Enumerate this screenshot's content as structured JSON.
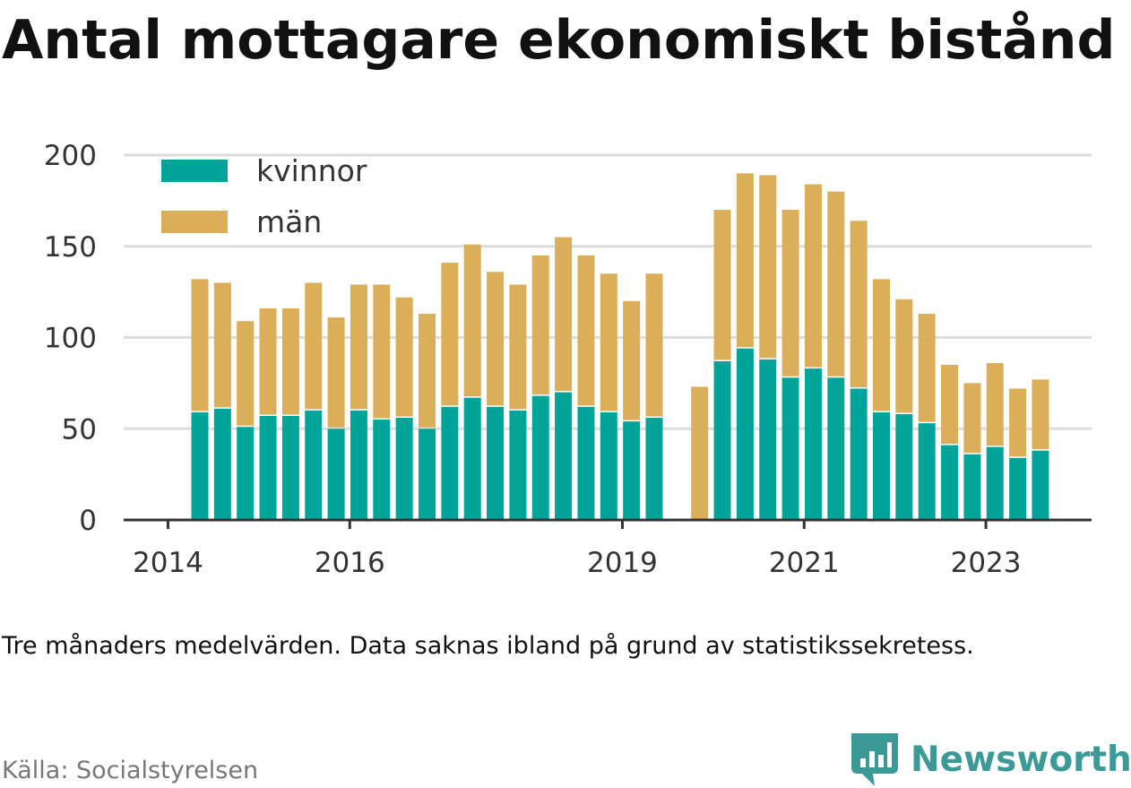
{
  "title": "Antal mottagare ekonomiskt bistånd",
  "note": "Tre månaders medelvärden. Data saknas ibland på grund av statistikssekretess.",
  "source": "Källa: Socialstyrelsen",
  "brand": {
    "name": "Newsworthy",
    "icon": "newsworthy-logo-icon"
  },
  "colors": {
    "kvinnor": "#00a499",
    "man": "#dbae5a",
    "grid": "#dddddd",
    "axis": "#333333",
    "brand": "#3b9a95"
  },
  "chart_data": {
    "type": "bar",
    "stacked": true,
    "title": "",
    "xlabel": "",
    "ylabel": "",
    "ylim": [
      0,
      200
    ],
    "yticks": [
      "0",
      "50",
      "100",
      "150",
      "200"
    ],
    "xticks": [
      {
        "label": "2014",
        "x": "2014-Q1"
      },
      {
        "label": "2016",
        "x": "2016-Q1"
      },
      {
        "label": "2019",
        "x": "2019-Q1"
      },
      {
        "label": "2021",
        "x": "2021-Q1"
      },
      {
        "label": "2023",
        "x": "2023-Q1"
      }
    ],
    "legend_position": "top-left",
    "grid": true,
    "x": [
      "2014-Q2",
      "2014-Q3",
      "2014-Q4",
      "2015-Q1",
      "2015-Q2",
      "2015-Q3",
      "2015-Q4",
      "2016-Q1",
      "2016-Q2",
      "2016-Q3",
      "2016-Q4",
      "2017-Q1",
      "2017-Q2",
      "2017-Q3",
      "2017-Q4",
      "2018-Q1",
      "2018-Q2",
      "2018-Q3",
      "2018-Q4",
      "2019-Q1",
      "2019-Q2",
      "2019-Q3",
      "2019-Q4",
      "2020-Q1",
      "2020-Q2",
      "2020-Q3",
      "2020-Q4",
      "2021-Q1",
      "2021-Q2",
      "2021-Q3",
      "2021-Q4",
      "2022-Q1",
      "2022-Q2",
      "2022-Q3",
      "2022-Q4",
      "2023-Q1",
      "2023-Q2",
      "2023-Q3"
    ],
    "series": [
      {
        "name": "kvinnor",
        "values": [
          59,
          61,
          51,
          57,
          57,
          60,
          50,
          60,
          55,
          56,
          50,
          62,
          67,
          62,
          60,
          68,
          70,
          62,
          59,
          54,
          56,
          null,
          null,
          87,
          94,
          88,
          78,
          83,
          78,
          72,
          59,
          58,
          53,
          41,
          36,
          40,
          34,
          38
        ]
      },
      {
        "name": "män",
        "values": [
          73,
          69,
          58,
          59,
          59,
          70,
          61,
          69,
          74,
          66,
          63,
          79,
          84,
          74,
          69,
          77,
          85,
          83,
          76,
          66,
          79,
          null,
          73,
          83,
          96,
          101,
          92,
          101,
          102,
          92,
          73,
          63,
          60,
          44,
          39,
          46,
          38,
          39
        ]
      }
    ]
  }
}
